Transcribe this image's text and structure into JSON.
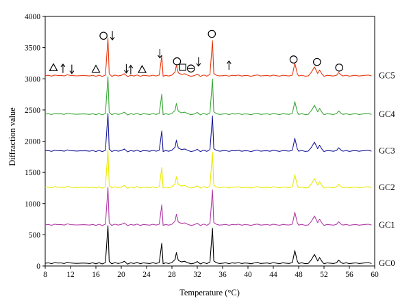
{
  "chart_data": {
    "type": "line",
    "title": "",
    "xlabel": "Temperature (°C)",
    "ylabel": "Diffraction value",
    "xlim": [
      8,
      60
    ],
    "ylim": [
      0,
      4000
    ],
    "x_ticks": [
      8,
      12,
      16,
      20,
      24,
      28,
      32,
      36,
      40,
      44,
      48,
      52,
      56,
      60
    ],
    "y_ticks": [
      0,
      500,
      1000,
      1500,
      2000,
      2500,
      3000,
      3500,
      4000
    ],
    "grid": false,
    "legend": "labels at right end of each trace",
    "baseline_x": [
      8,
      8.5,
      9,
      9.5,
      10,
      10.5,
      11,
      11.5,
      12,
      12.5,
      13,
      13.5,
      14,
      14.5,
      15,
      15.5,
      16,
      16.5,
      17,
      17.5,
      17.9,
      18.1,
      18.5,
      19,
      19.5,
      20,
      20.5,
      21,
      21.5,
      22,
      22.5,
      23,
      23.5,
      24,
      24.5,
      25,
      25.5,
      26,
      26.4,
      26.6,
      27,
      27.5,
      28,
      28.5,
      28.7,
      29,
      29.5,
      30,
      30.5,
      31,
      31.5,
      32,
      32.5,
      33,
      33.5,
      34,
      34.4,
      34.6,
      35,
      35.5,
      36,
      36.5,
      37,
      37.5,
      38,
      38.5,
      39,
      39.5,
      40,
      40.5,
      41,
      41.5,
      42,
      42.5,
      43,
      43.5,
      44,
      44.5,
      45,
      45.5,
      46,
      46.5,
      47,
      47.4,
      47.8,
      48,
      48.5,
      49,
      49.5,
      50,
      50.5,
      51,
      51.3,
      51.7,
      52,
      52.5,
      53,
      53.5,
      54,
      54.3,
      54.7,
      55,
      55.5,
      56,
      56.5,
      57,
      57.5,
      58,
      58.5,
      59,
      59.5,
      60
    ],
    "baseline_y": [
      0,
      5,
      -8,
      10,
      2,
      4,
      -5,
      15,
      3,
      0,
      -3,
      0,
      2,
      0,
      -5,
      6,
      -10,
      8,
      -12,
      10,
      600,
      30,
      -10,
      10,
      -5,
      5,
      30,
      -15,
      6,
      -6,
      12,
      -10,
      5,
      0,
      -6,
      8,
      -5,
      10,
      320,
      -10,
      5,
      -6,
      10,
      60,
      170,
      45,
      20,
      30,
      8,
      -10,
      0,
      25,
      -12,
      12,
      -8,
      20,
      560,
      35,
      8,
      -5,
      0,
      6,
      -8,
      5,
      0,
      10,
      -6,
      3,
      0,
      -10,
      4,
      12,
      -5,
      0,
      3,
      -6,
      10,
      0,
      -8,
      6,
      0,
      -4,
      10,
      200,
      30,
      -5,
      6,
      -8,
      -4,
      55,
      140,
      35,
      90,
      25,
      -10,
      5,
      0,
      -6,
      8,
      50,
      10,
      -5,
      6,
      -8,
      0,
      5,
      -6,
      0,
      5,
      10,
      -5
    ],
    "series": [
      {
        "name": "GC0",
        "offset": 45,
        "color": "#000000"
      },
      {
        "name": "GC1",
        "offset": 660,
        "color": "#b23aa6"
      },
      {
        "name": "GC2",
        "offset": 1260,
        "color": "#e9e900"
      },
      {
        "name": "GC3",
        "offset": 1845,
        "color": "#1a1a9a"
      },
      {
        "name": "GC4",
        "offset": 2435,
        "color": "#3aa838"
      },
      {
        "name": "GC5",
        "offset": 3050,
        "color": "#e8380d"
      }
    ],
    "annotations": [
      {
        "type": "triangle",
        "x": 9.3,
        "y": 3180
      },
      {
        "type": "up-arrow",
        "x": 10.8,
        "y": 3170
      },
      {
        "type": "down-arrow",
        "x": 12.2,
        "y": 3150
      },
      {
        "type": "triangle",
        "x": 16.0,
        "y": 3155
      },
      {
        "type": "circle",
        "x": 17.2,
        "y": 3690
      },
      {
        "type": "down-arrow",
        "x": 18.6,
        "y": 3690
      },
      {
        "type": "down-arrow",
        "x": 20.8,
        "y": 3160
      },
      {
        "type": "up-arrow",
        "x": 21.5,
        "y": 3150
      },
      {
        "type": "triangle",
        "x": 23.3,
        "y": 3150
      },
      {
        "type": "down-arrow",
        "x": 26.1,
        "y": 3400
      },
      {
        "type": "circle",
        "x": 28.8,
        "y": 3280
      },
      {
        "type": "square",
        "x": 29.7,
        "y": 3185
      },
      {
        "type": "circle-minus",
        "x": 31.0,
        "y": 3165
      },
      {
        "type": "down-arrow",
        "x": 32.2,
        "y": 3270
      },
      {
        "type": "circle",
        "x": 34.3,
        "y": 3720
      },
      {
        "type": "up-arrow",
        "x": 37.0,
        "y": 3220
      },
      {
        "type": "circle",
        "x": 47.2,
        "y": 3310
      },
      {
        "type": "circle",
        "x": 50.9,
        "y": 3270
      },
      {
        "type": "circle",
        "x": 54.4,
        "y": 3180
      }
    ]
  }
}
